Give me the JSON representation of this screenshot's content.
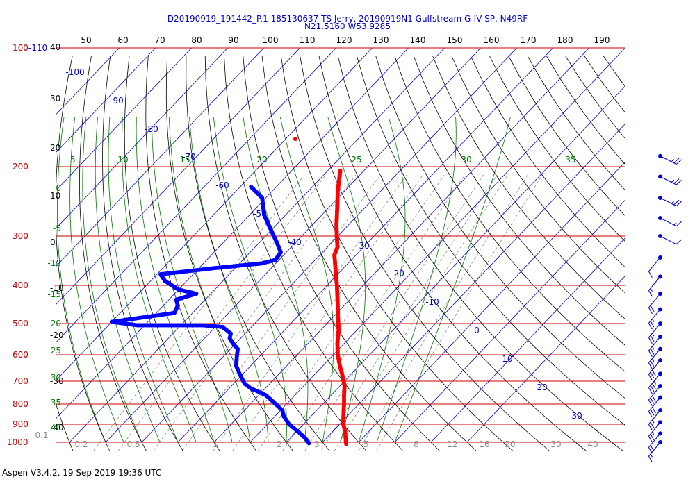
{
  "title": {
    "line1": "D20190919_191442_P.1 185130637 TS Jerry, 20190919N1 Gulfstream G-IV SP, N49RF",
    "line2": "N21.5160 W53.9285"
  },
  "footer": "Aspen V3.4.2, 19 Sep 2019  19:36 UTC",
  "colors": {
    "isobar": "#cc0000",
    "isotherm": "#0000cc",
    "dry_adiabat": "#000000",
    "moist_adiabat": "#007700",
    "mixing_ratio": "#888888",
    "temperature": "#ff0000",
    "dewpoint": "#0000ff",
    "wind_barb": "#0000cc"
  },
  "chart_data": {
    "type": "skew-t",
    "pressure_labels": [
      "100-110",
      "200",
      "300",
      "400",
      "500",
      "600",
      "700",
      "800",
      "900",
      "1000"
    ],
    "pressure_levels": [
      100,
      200,
      300,
      400,
      500,
      600,
      700,
      800,
      900,
      1000
    ],
    "top_ticks": [
      "50",
      "60",
      "70",
      "80",
      "90",
      "100",
      "110",
      "120",
      "130",
      "140",
      "150",
      "160",
      "170",
      "180",
      "190"
    ],
    "height_labels": [
      "40",
      "30",
      "20",
      "10",
      "0",
      "-10",
      "-20",
      "-30",
      "-40"
    ],
    "moist_labels_left": [
      "0",
      "-5",
      "-10",
      "-15",
      "-20",
      "-25",
      "-30",
      "-35",
      "-40"
    ],
    "moist_labels_top": [
      "5",
      "10",
      "15",
      "20",
      "25",
      "30",
      "35"
    ],
    "isotherm_labels": [
      "-100",
      "-90",
      "-80",
      "-70",
      "-60",
      "-50",
      "-40",
      "-30",
      "-20",
      "-10",
      "0",
      "10",
      "20",
      "30"
    ],
    "mixing_ratio_labels": [
      "0.1",
      "0.2",
      "0.5",
      "1",
      "2",
      "3",
      "5",
      "8",
      "12",
      "16",
      "20",
      "30",
      "40"
    ],
    "temperature": [
      {
        "p": 205,
        "t": -46.5
      },
      {
        "p": 230,
        "t": -42.0
      },
      {
        "p": 255,
        "t": -37.5
      },
      {
        "p": 280,
        "t": -33.5
      },
      {
        "p": 300,
        "t": -30.3
      },
      {
        "p": 320,
        "t": -27.2
      },
      {
        "p": 335,
        "t": -26.0
      },
      {
        "p": 365,
        "t": -21.8
      },
      {
        "p": 400,
        "t": -17.3
      },
      {
        "p": 440,
        "t": -12.8
      },
      {
        "p": 480,
        "t": -8.8
      },
      {
        "p": 520,
        "t": -5.0
      },
      {
        "p": 560,
        "t": -2.0
      },
      {
        "p": 600,
        "t": 1.2
      },
      {
        "p": 640,
        "t": 4.7
      },
      {
        "p": 680,
        "t": 8.2
      },
      {
        "p": 720,
        "t": 11.3
      },
      {
        "p": 760,
        "t": 13.6
      },
      {
        "p": 800,
        "t": 15.9
      },
      {
        "p": 850,
        "t": 18.5
      },
      {
        "p": 900,
        "t": 21.0
      },
      {
        "p": 940,
        "t": 23.5
      },
      {
        "p": 970,
        "t": 25.0
      },
      {
        "p": 1010,
        "t": 27.0
      }
    ],
    "dewpoint": [
      {
        "p": 225,
        "t": -67.0
      },
      {
        "p": 240,
        "t": -61.0
      },
      {
        "p": 265,
        "t": -56.0
      },
      {
        "p": 290,
        "t": -50.0
      },
      {
        "p": 310,
        "t": -45.5
      },
      {
        "p": 330,
        "t": -41.5
      },
      {
        "p": 345,
        "t": -41.0
      },
      {
        "p": 352,
        "t": -44.0
      },
      {
        "p": 362,
        "t": -56.0
      },
      {
        "p": 375,
        "t": -69.0
      },
      {
        "p": 390,
        "t": -66.0
      },
      {
        "p": 410,
        "t": -60.0
      },
      {
        "p": 420,
        "t": -54.0
      },
      {
        "p": 435,
        "t": -58.0
      },
      {
        "p": 450,
        "t": -56.0
      },
      {
        "p": 470,
        "t": -55.0
      },
      {
        "p": 495,
        "t": -70.0
      },
      {
        "p": 505,
        "t": -62.0
      },
      {
        "p": 505,
        "t": -44.0
      },
      {
        "p": 510,
        "t": -38.0
      },
      {
        "p": 530,
        "t": -34.0
      },
      {
        "p": 545,
        "t": -33.0
      },
      {
        "p": 560,
        "t": -31.0
      },
      {
        "p": 580,
        "t": -28.0
      },
      {
        "p": 610,
        "t": -26.0
      },
      {
        "p": 640,
        "t": -24.0
      },
      {
        "p": 680,
        "t": -20.0
      },
      {
        "p": 710,
        "t": -17.0
      },
      {
        "p": 730,
        "t": -14.0
      },
      {
        "p": 760,
        "t": -8.0
      },
      {
        "p": 800,
        "t": -3.0
      },
      {
        "p": 830,
        "t": 0.5
      },
      {
        "p": 860,
        "t": 2.5
      },
      {
        "p": 900,
        "t": 6.0
      },
      {
        "p": 940,
        "t": 10.5
      },
      {
        "p": 980,
        "t": 14.5
      },
      {
        "p": 1005,
        "t": 16.5
      }
    ],
    "wind_barbs": [
      {
        "p": 188,
        "speed": 25
      },
      {
        "p": 212,
        "speed": 25
      },
      {
        "p": 240,
        "speed": 25
      },
      {
        "p": 270,
        "speed": 15
      },
      {
        "p": 300,
        "speed": 10
      },
      {
        "p": 340,
        "speed": 10
      },
      {
        "p": 380,
        "speed": 15
      },
      {
        "p": 420,
        "speed": 20
      },
      {
        "p": 460,
        "speed": 25
      },
      {
        "p": 500,
        "speed": 25
      },
      {
        "p": 540,
        "speed": 25
      },
      {
        "p": 580,
        "speed": 25
      },
      {
        "p": 620,
        "speed": 30
      },
      {
        "p": 670,
        "speed": 35
      },
      {
        "p": 720,
        "speed": 30
      },
      {
        "p": 770,
        "speed": 30
      },
      {
        "p": 830,
        "speed": 25
      },
      {
        "p": 890,
        "speed": 25
      },
      {
        "p": 950,
        "speed": 20
      },
      {
        "p": 1000,
        "speed": 15
      }
    ]
  }
}
